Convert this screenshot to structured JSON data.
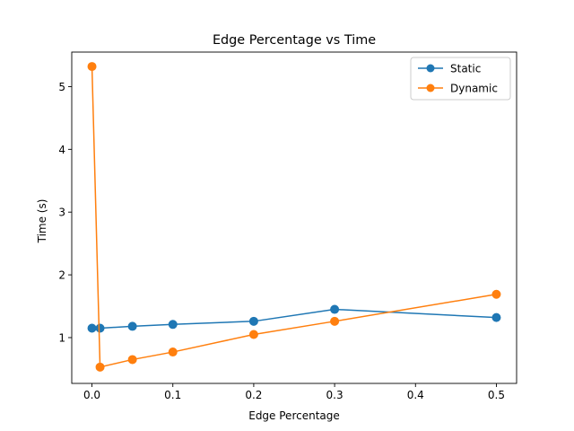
{
  "chart_data": {
    "type": "line",
    "title": "Edge Percentage vs Time",
    "xlabel": "Edge Percentage",
    "ylabel": "Time (s)",
    "xlim": [
      -0.025,
      0.525
    ],
    "ylim": [
      0.27,
      5.55
    ],
    "x_ticks": [
      0.0,
      0.1,
      0.2,
      0.3,
      0.4,
      0.5
    ],
    "x_tick_labels": [
      "0.0",
      "0.1",
      "0.2",
      "0.3",
      "0.4",
      "0.5"
    ],
    "y_ticks": [
      1,
      2,
      3,
      4,
      5
    ],
    "y_tick_labels": [
      "1",
      "2",
      "3",
      "4",
      "5"
    ],
    "grid": false,
    "legend_position": "top-right",
    "series": [
      {
        "name": "Static",
        "color": "#1f77b4",
        "marker": "circle",
        "x": [
          0.0,
          0.01,
          0.05,
          0.1,
          0.2,
          0.3,
          0.5
        ],
        "y": [
          1.15,
          1.15,
          1.18,
          1.21,
          1.26,
          1.45,
          1.32
        ]
      },
      {
        "name": "Dynamic",
        "color": "#ff7f0e",
        "marker": "circle",
        "x": [
          0.0,
          0.01,
          0.05,
          0.1,
          0.2,
          0.3,
          0.5
        ],
        "y": [
          5.32,
          0.53,
          0.65,
          0.77,
          1.05,
          1.26,
          1.69
        ]
      }
    ]
  }
}
